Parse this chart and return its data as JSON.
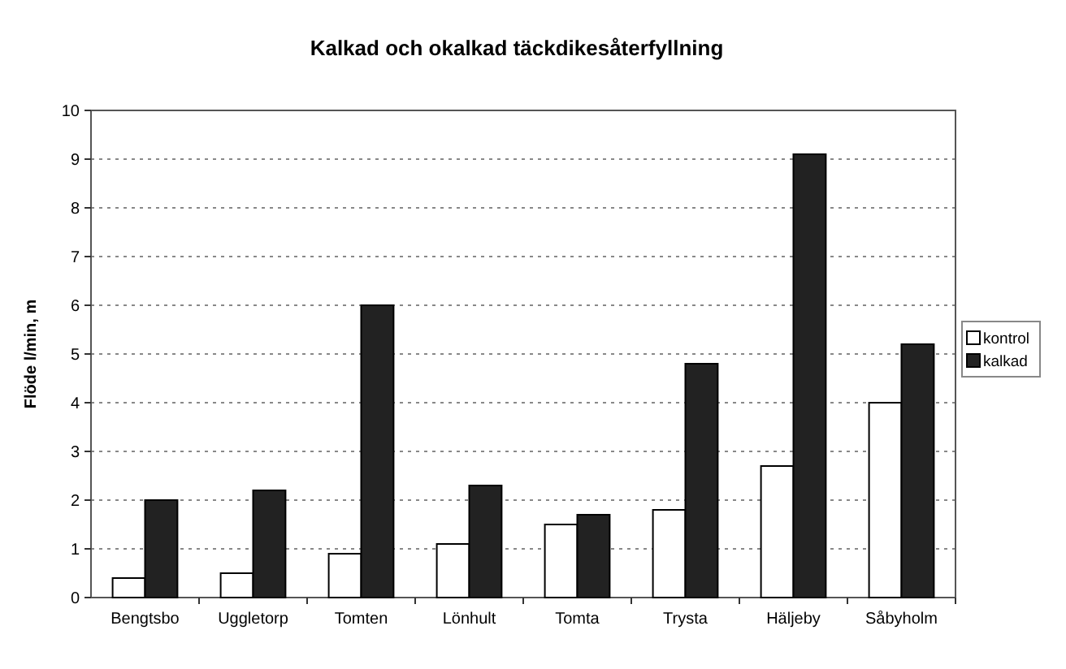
{
  "chart_data": {
    "type": "bar",
    "title": "Kalkad och okalkad täckdikesåterfyllning",
    "ylabel": "Flöde l/min, m",
    "categories": [
      "Bengtsbo",
      "Uggletorp",
      "Tomten",
      "Lönhult",
      "Tomta",
      "Trysta",
      "Häljeby",
      "Såbyholm"
    ],
    "series": [
      {
        "name": "kontrol",
        "color": "#ffffff",
        "values": [
          0.4,
          0.5,
          0.9,
          1.1,
          1.5,
          1.8,
          2.7,
          4.0
        ]
      },
      {
        "name": "kalkad",
        "color": "#222222",
        "values": [
          2.0,
          2.2,
          6.0,
          2.3,
          1.7,
          4.8,
          9.1,
          5.2
        ]
      }
    ],
    "ylim": [
      0,
      10
    ],
    "yticks": [
      0,
      1,
      2,
      3,
      4,
      5,
      6,
      7,
      8,
      9,
      10
    ],
    "grid": "y",
    "legend": "right"
  }
}
